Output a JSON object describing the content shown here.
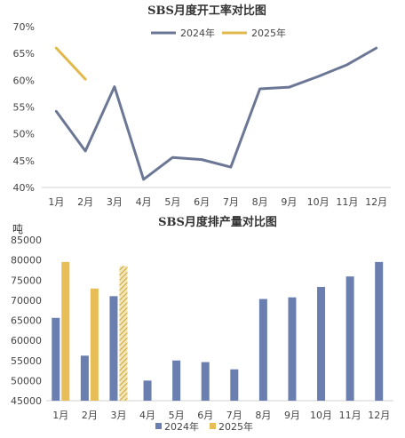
{
  "chart_data": [
    {
      "type": "line",
      "title": "SBS月度开工率对比图",
      "categories": [
        "1月",
        "2月",
        "3月",
        "4月",
        "5月",
        "6月",
        "7月",
        "8月",
        "9月",
        "10月",
        "11月",
        "12月"
      ],
      "ylim": [
        40,
        70
      ],
      "yticks": [
        "40%",
        "45%",
        "50%",
        "55%",
        "60%",
        "65%",
        "70%"
      ],
      "grid": false,
      "legend_position": "top-center",
      "series": [
        {
          "name": "2024年",
          "color": "#6b7794",
          "values": [
            54.2,
            46.8,
            58.8,
            41.5,
            45.6,
            45.2,
            43.8,
            58.4,
            58.7,
            60.7,
            62.9,
            66.0
          ]
        },
        {
          "name": "2025年",
          "color": "#e0b84c",
          "values": [
            66.0,
            60.2,
            null,
            null,
            null,
            null,
            null,
            null,
            null,
            null,
            null,
            null
          ]
        }
      ]
    },
    {
      "type": "bar",
      "title": "SBS月度排产量对比图",
      "ylabel": "吨",
      "categories": [
        "1月",
        "2月",
        "3月",
        "4月",
        "5月",
        "6月",
        "7月",
        "8月",
        "9月",
        "10月",
        "11月",
        "12月"
      ],
      "ylim": [
        45000,
        85000
      ],
      "yticks": [
        "45000",
        "50000",
        "55000",
        "60000",
        "65000",
        "70000",
        "75000",
        "80000",
        "85000"
      ],
      "grid": false,
      "legend_position": "bottom-center",
      "series": [
        {
          "name": "2024年",
          "color": "#6b7eb0",
          "values": [
            65600,
            56200,
            71000,
            50000,
            55000,
            54600,
            52800,
            70300,
            70700,
            73300,
            75900,
            79500
          ]
        },
        {
          "name": "2025年",
          "color": "#e6bd57",
          "hatched_last": true,
          "values": [
            79500,
            72900,
            78500,
            null,
            null,
            null,
            null,
            null,
            null,
            null,
            null,
            null
          ]
        }
      ]
    }
  ]
}
